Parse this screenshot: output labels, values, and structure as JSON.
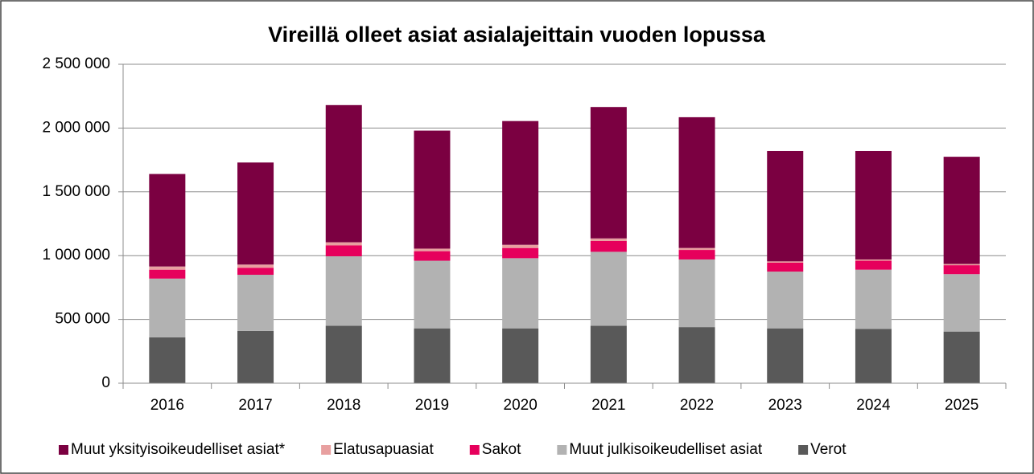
{
  "chart_data": {
    "type": "bar",
    "stacked": true,
    "title": "Vireillä olleet asiat asialajeittain vuoden lopussa",
    "categories": [
      "2016",
      "2017",
      "2018",
      "2019",
      "2020",
      "2021",
      "2022",
      "2023",
      "2024",
      "2025"
    ],
    "series": [
      {
        "name": "Muut yksityisoikeudelliset asiat*",
        "color": "#7b0041",
        "values": [
          725000,
          800000,
          1075000,
          925000,
          970000,
          1030000,
          1025000,
          865000,
          850000,
          840000
        ]
      },
      {
        "name": "Elatusapuasiat",
        "color": "#e8a0a0",
        "values": [
          25000,
          25000,
          25000,
          20000,
          25000,
          20000,
          15000,
          10000,
          10000,
          10000
        ]
      },
      {
        "name": "Sakot",
        "color": "#e6005c",
        "values": [
          70000,
          55000,
          85000,
          75000,
          80000,
          85000,
          75000,
          70000,
          70000,
          70000
        ]
      },
      {
        "name": "Muut julkisoikeudelliset asiat",
        "color": "#b2b2b2",
        "values": [
          460000,
          440000,
          545000,
          530000,
          550000,
          580000,
          530000,
          445000,
          465000,
          450000
        ]
      },
      {
        "name": "Verot",
        "color": "#595959",
        "values": [
          360000,
          410000,
          450000,
          430000,
          430000,
          450000,
          440000,
          430000,
          425000,
          405000
        ]
      }
    ],
    "ylim": [
      0,
      2500000
    ],
    "yticks": [
      0,
      {
        "value": 500000,
        "label": "500 000"
      },
      {
        "value": 1000000,
        "label": "1 000 000"
      },
      {
        "value": 1500000,
        "label": "1 500 000"
      },
      {
        "value": 2000000,
        "label": "2 000 000"
      },
      {
        "value": 2500000,
        "label": "2 500 000"
      }
    ],
    "grid": true,
    "legend": "bottom"
  }
}
